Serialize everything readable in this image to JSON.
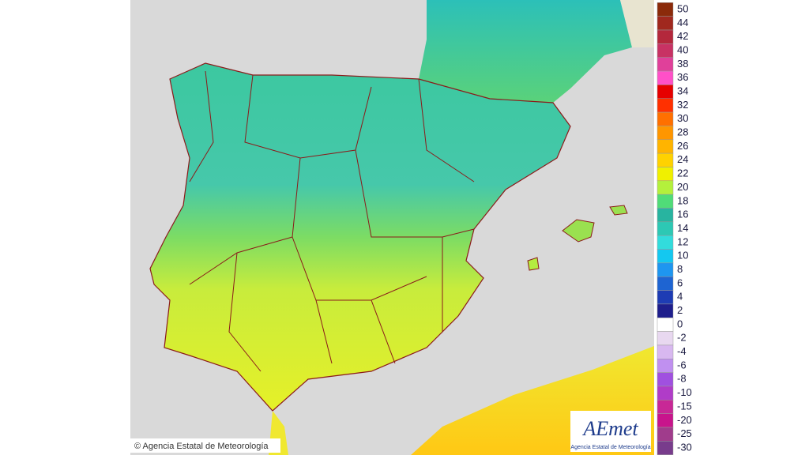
{
  "map": {
    "copyright": "© Agencia Estatal de Meteorología",
    "logo": {
      "title": "AEmet",
      "subtitle": "Agencia Estatal de Meteorología"
    }
  },
  "legend": {
    "values": [
      50,
      44,
      42,
      40,
      38,
      36,
      34,
      32,
      30,
      28,
      26,
      24,
      22,
      20,
      18,
      16,
      14,
      12,
      10,
      8,
      6,
      4,
      2,
      0,
      -2,
      -4,
      -6,
      -8,
      -10,
      -15,
      -20,
      -25,
      -30
    ],
    "colors": [
      "#8b2a0a",
      "#a0281e",
      "#b4283c",
      "#c83264",
      "#e0409a",
      "#ff50c8",
      "#e60000",
      "#ff3000",
      "#ff7000",
      "#ff9600",
      "#ffb400",
      "#ffd200",
      "#f0f000",
      "#b4f03c",
      "#50dc78",
      "#28b4a0",
      "#2dc8b4",
      "#32dcdc",
      "#14c8f0",
      "#1e96f0",
      "#1e64d2",
      "#1e3cb4",
      "#1e1e8c",
      "#ffffff",
      "#e8d8f0",
      "#d8b8f0",
      "#c090f0",
      "#a050e0",
      "#b03cc8",
      "#c82896",
      "#c8148c",
      "#a03c8c",
      "#783c8c"
    ]
  }
}
